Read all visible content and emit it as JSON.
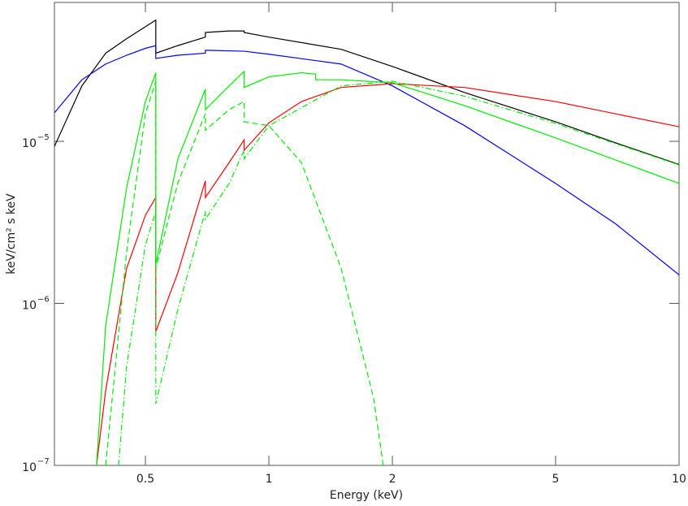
{
  "chart_data": {
    "type": "line",
    "x_label": "Energy (keV)",
    "y_label": "keV/cm² s keV",
    "xlog": true,
    "ylog": true,
    "xlim": [
      0.3,
      10
    ],
    "ylim": [
      1e-07,
      7.2e-05
    ],
    "xticks": [
      0.5,
      1,
      2,
      5,
      10
    ],
    "yticks": [
      {
        "value": 1e-07,
        "label": "10",
        "exponent": "−7"
      },
      {
        "value": 1e-06,
        "label": "10",
        "exponent": "−6"
      },
      {
        "value": 1e-05,
        "label": "10",
        "exponent": "−5"
      }
    ],
    "series": [
      {
        "color": "#000000",
        "dash": "solid",
        "x": [
          0.3,
          0.35,
          0.4,
          0.45,
          0.5,
          0.53,
          0.53,
          0.6,
          0.7,
          0.7,
          0.8,
          0.87,
          0.87,
          1,
          1.5,
          2,
          3,
          5,
          7,
          10
        ],
        "values": [
          9.3e-06,
          2.2e-05,
          3.5e-05,
          4.3e-05,
          5.1e-05,
          5.6e-05,
          3.5e-05,
          3.9e-05,
          4.4e-05,
          4.7e-05,
          4.8e-05,
          4.8e-05,
          4.7e-05,
          4.4e-05,
          3.7e-05,
          2.9e-05,
          2e-05,
          1.32e-05,
          9.8e-06,
          7.2e-06
        ]
      },
      {
        "color": "#0000ff",
        "dash": "solid",
        "x": [
          0.3,
          0.35,
          0.4,
          0.45,
          0.5,
          0.53,
          0.53,
          0.6,
          0.7,
          0.7,
          0.87,
          1,
          1.5,
          2,
          3,
          5,
          7,
          10
        ],
        "values": [
          1.5e-05,
          2.4e-05,
          3e-05,
          3.4e-05,
          3.75e-05,
          3.9e-05,
          3.25e-05,
          3.4e-05,
          3.5e-05,
          3.65e-05,
          3.6e-05,
          3.45e-05,
          3e-05,
          2.2e-05,
          1.25e-05,
          5.5e-06,
          3.1e-06,
          1.5e-06
        ]
      },
      {
        "color": "#ff0000",
        "dash": "solid",
        "x": [
          0.38,
          0.4,
          0.45,
          0.5,
          0.53,
          0.53,
          0.6,
          0.7,
          0.7,
          0.8,
          0.87,
          0.87,
          1,
          1.2,
          1.5,
          2,
          3,
          5,
          10
        ],
        "values": [
          1e-07,
          2.9e-07,
          1.65e-06,
          3.5e-06,
          4.5e-06,
          6.7e-07,
          1.55e-06,
          5.7e-06,
          4.5e-06,
          7.4e-06,
          1.02e-05,
          8.8e-06,
          1.3e-05,
          1.76e-05,
          2.15e-05,
          2.27e-05,
          2.15e-05,
          1.76e-05,
          1.23e-05
        ]
      },
      {
        "color": "#00ee00",
        "dash": "solid",
        "x": [
          0.38,
          0.4,
          0.45,
          0.5,
          0.53,
          0.53,
          0.6,
          0.7,
          0.7,
          0.8,
          0.87,
          0.87,
          1,
          1.2,
          1.3,
          1.3,
          1.5,
          2,
          3,
          5,
          10
        ],
        "values": [
          1e-07,
          7.3e-07,
          5.2e-06,
          1.76e-05,
          2.65e-05,
          1.74e-06,
          7.8e-06,
          2.1e-05,
          1.57e-05,
          2.2e-05,
          2.7e-05,
          2.15e-05,
          2.5e-05,
          2.65e-05,
          2.6e-05,
          2.4e-05,
          2.4e-05,
          2.3e-05,
          1.66e-05,
          1.05e-05,
          5.5e-06
        ]
      },
      {
        "color": "#00ee00",
        "dash": "dashed",
        "x": [
          0.4,
          0.45,
          0.5,
          0.53,
          0.53,
          0.6,
          0.7,
          0.7,
          0.8,
          0.87,
          0.87,
          1,
          1.2,
          1.5,
          1.8,
          1.9
        ],
        "values": [
          1e-07,
          2.1e-06,
          1.48e-05,
          2.35e-05,
          1.65e-06,
          5.55e-06,
          1.48e-05,
          1.17e-05,
          1.57e-05,
          1.76e-05,
          1.32e-05,
          1.25e-05,
          7.4e-06,
          1.65e-06,
          2.6e-07,
          1e-07
        ]
      },
      {
        "color": "#00ee00",
        "dash": "dashdot",
        "x": [
          0.43,
          0.45,
          0.5,
          0.53,
          0.53,
          0.6,
          0.7,
          0.7,
          0.8,
          0.87,
          0.87,
          1,
          1.5,
          2,
          3,
          5,
          10
        ],
        "values": [
          1e-07,
          4.1e-07,
          2.3e-06,
          3.7e-06,
          2.4e-07,
          9.2e-07,
          3.7e-06,
          3.3e-06,
          5.5e-06,
          8.8e-06,
          7.8e-06,
          1.25e-05,
          2.2e-05,
          2.35e-05,
          1.9e-05,
          1.29e-05,
          7.15e-06
        ]
      }
    ]
  }
}
